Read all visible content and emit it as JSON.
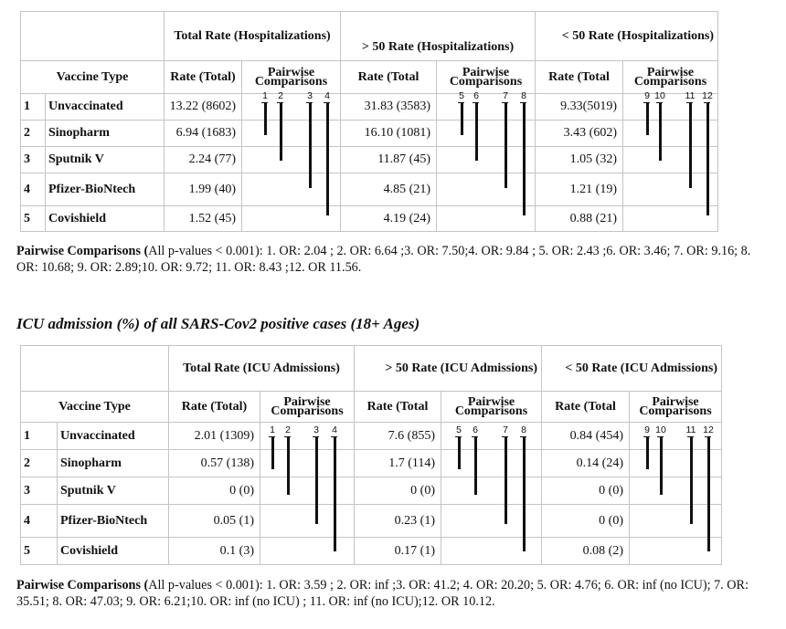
{
  "table1": {
    "group_headers": [
      "Total Rate (Hospitalizations)",
      "> 50 Rate (Hospitalizations)",
      "< 50 Rate (Hospitalizations)"
    ],
    "col_vaccine": "Vaccine Type",
    "col_rate_total": "Rate (Total)",
    "col_rate_total_b": "Rate (Total",
    "col_pairwise": "Pairwise Comparisons",
    "rows": [
      {
        "n": "1",
        "vaccine": "Unvaccinated",
        "t": "13.22 (8602)",
        "a": "31.83 (3583)",
        "b": "9.33(5019)"
      },
      {
        "n": "2",
        "vaccine": "Sinopharm",
        "t": "6.94 (1683)",
        "a": "16.10 (1081)",
        "b": "3.43 (602)"
      },
      {
        "n": "3",
        "vaccine": "Sputnik V",
        "t": "2.24 (77)",
        "a": "11.87 (45)",
        "b": "1.05 (32)"
      },
      {
        "n": "4",
        "vaccine": "Pfizer-BioNtech",
        "t": "1.99 (40)",
        "a": "4.85 (21)",
        "b": "1.21 (19)"
      },
      {
        "n": "5",
        "vaccine": "Covishield",
        "t": "1.52 (45)",
        "a": "4.19 (24)",
        "b": "0.88 (21)"
      }
    ],
    "note_bold": "Pairwise Comparisons (",
    "note_text": "All p-values < 0.001): 1. OR: 2.04 ; 2. OR: 6.64  ;3. OR: 7.50;4. OR: 9.84 ; 5. OR: 2.43 ;6. OR: 3.46; 7. OR: 9.16; 8. OR: 10.68; 9. OR:  2.89;10. OR:  9.72; 11.  OR: 8.43 ;12. OR 11.56."
  },
  "title2": "ICU admission (%) of all SARS-Cov2 positive cases (18+ Ages)",
  "table2": {
    "group_headers": [
      "Total Rate (ICU Admissions)",
      "> 50 Rate (ICU Admissions)",
      "< 50 Rate (ICU Admissions)"
    ],
    "col_vaccine": "Vaccine Type",
    "col_rate_total": "Rate (Total)",
    "col_rate_total_b": "Rate (Total",
    "col_pairwise": "Pairwise Comparisons",
    "rows": [
      {
        "n": "1",
        "vaccine": "Unvaccinated",
        "t": "2.01 (1309)",
        "a": "7.6 (855)",
        "b": "0.84 (454)"
      },
      {
        "n": "2",
        "vaccine": "Sinopharm",
        "t": "0.57 (138)",
        "a": "1.7 (114)",
        "b": "0.14 (24)"
      },
      {
        "n": "3",
        "vaccine": "Sputnik V",
        "t": "0 (0)",
        "a": "0 (0)",
        "b": "0 (0)"
      },
      {
        "n": "4",
        "vaccine": "Pfizer-BioNtech",
        "t": "0.05 (1)",
        "a": "0.23 (1)",
        "b": "0 (0)"
      },
      {
        "n": "5",
        "vaccine": "Covishield",
        "t": "0.1 (3)",
        "a": "0.17 (1)",
        "b": "0.08 (2)"
      }
    ],
    "note_bold": "Pairwise Comparisons (",
    "note_text": "All p-values < 0.001):  1. OR: 3.59 ; 2. OR: inf ;3. OR: 41.2; 4. OR: 20.20; 5. OR: 4.76; 6. OR: inf (no ICU); 7. OR: 35.51; 8. OR: 47.03; 9. OR:  6.21;10. OR: inf (no ICU) ; 11.  OR: inf (no ICU);12. OR 10.12."
  },
  "comparison_labels": [
    "1",
    "2",
    "3",
    "4",
    "5",
    "6",
    "7",
    "8",
    "9",
    "10",
    "11",
    "12"
  ]
}
